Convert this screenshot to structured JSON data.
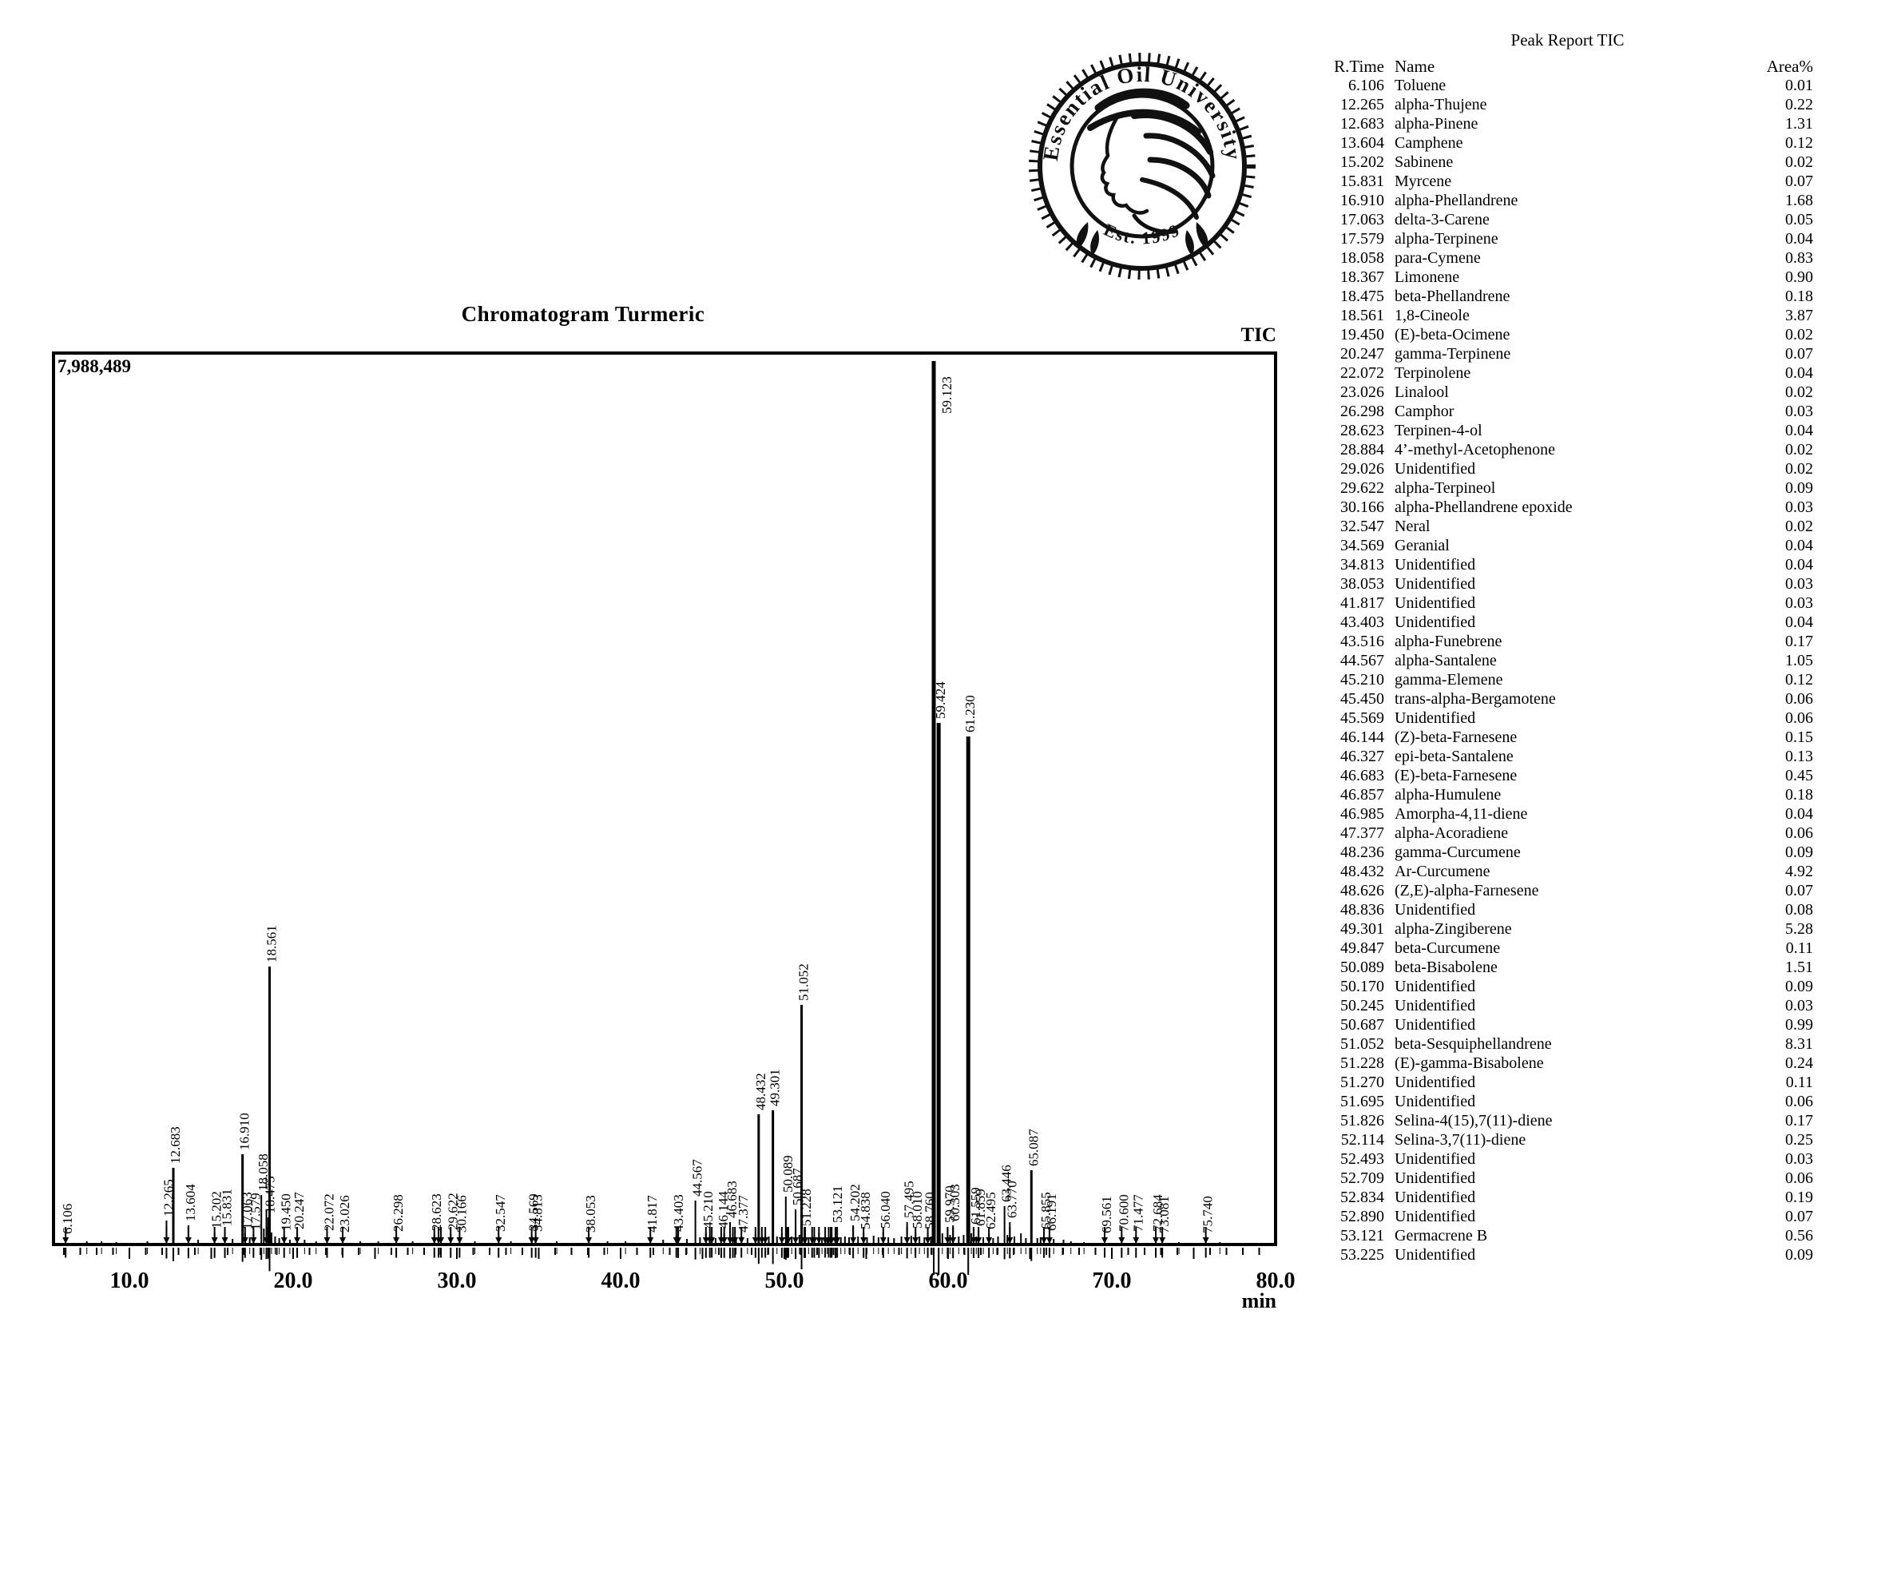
{
  "logo": {
    "ring_text": "Essential Oil University",
    "est_text": "Est. 1999"
  },
  "chart": {
    "title": "Chromatogram Turmeric",
    "signal_label": "TIC",
    "full_scale_label": "7,988,489",
    "x_unit": "min"
  },
  "chart_data": {
    "type": "line",
    "title": "Chromatogram Turmeric",
    "signal": "TIC",
    "xlabel": "min",
    "x_range": [
      5.37,
      80.0
    ],
    "x_tick_values": [
      10,
      20,
      30,
      40,
      50,
      60,
      70,
      80
    ],
    "y_full_scale": 7988489,
    "note": "peaks: t = retention time (min), i = peak height as fraction of full scale, l = printed label, m = integrated peak marker",
    "peaks": [
      {
        "t": 6.106,
        "i": 0.007,
        "l": "6.106",
        "m": 1
      },
      {
        "t": 7.4,
        "i": 0.004
      },
      {
        "t": 8.3,
        "i": 0.004
      },
      {
        "t": 9.2,
        "i": 0.003
      },
      {
        "t": 11.1,
        "i": 0.004
      },
      {
        "t": 12.265,
        "i": 0.027,
        "l": "12.265",
        "m": 1
      },
      {
        "t": 12.683,
        "i": 0.087,
        "l": "12.683",
        "m": 1
      },
      {
        "t": 13.604,
        "i": 0.022,
        "l": "13.604",
        "m": 1
      },
      {
        "t": 14.2,
        "i": 0.005
      },
      {
        "t": 15.202,
        "i": 0.014,
        "l": "15.202",
        "m": 1
      },
      {
        "t": 15.831,
        "i": 0.016,
        "l": "15.831",
        "m": 1
      },
      {
        "t": 16.3,
        "i": 0.006
      },
      {
        "t": 16.91,
        "i": 0.102,
        "l": "16.910",
        "m": 1
      },
      {
        "t": 17.063,
        "i": 0.013,
        "l": "17.063",
        "m": 1
      },
      {
        "t": 17.35,
        "i": 0.008
      },
      {
        "t": 17.579,
        "i": 0.012,
        "l": "17.579",
        "m": 1
      },
      {
        "t": 18.058,
        "i": 0.056,
        "l": "18.058",
        "m": 1
      },
      {
        "t": 18.21,
        "i": 0.018
      },
      {
        "t": 18.367,
        "i": 0.04,
        "m": 1
      },
      {
        "t": 18.475,
        "i": 0.031,
        "l": "18.475",
        "m": 1
      },
      {
        "t": 18.561,
        "i": 0.315,
        "l": "18.561",
        "m": 1
      },
      {
        "t": 18.68,
        "i": 0.014
      },
      {
        "t": 18.9,
        "i": 0.009
      },
      {
        "t": 19.15,
        "i": 0.007
      },
      {
        "t": 19.45,
        "i": 0.011,
        "l": "19.450",
        "m": 1
      },
      {
        "t": 19.8,
        "i": 0.005
      },
      {
        "t": 20.247,
        "i": 0.013,
        "l": "20.247",
        "m": 1
      },
      {
        "t": 20.7,
        "i": 0.005
      },
      {
        "t": 21.4,
        "i": 0.004
      },
      {
        "t": 22.072,
        "i": 0.011,
        "l": "22.072",
        "m": 1
      },
      {
        "t": 23.026,
        "i": 0.009,
        "l": "23.026",
        "m": 1
      },
      {
        "t": 24.1,
        "i": 0.004
      },
      {
        "t": 25.2,
        "i": 0.004
      },
      {
        "t": 26.298,
        "i": 0.01,
        "l": "26.298",
        "m": 1
      },
      {
        "t": 27.3,
        "i": 0.004
      },
      {
        "t": 28.623,
        "i": 0.011,
        "l": "28.623",
        "m": 1
      },
      {
        "t": 28.884,
        "i": 0.009,
        "m": 1
      },
      {
        "t": 29.026,
        "i": 0.008,
        "m": 1
      },
      {
        "t": 29.622,
        "i": 0.012,
        "l": "29.622",
        "m": 1
      },
      {
        "t": 30.166,
        "i": 0.009,
        "l": "30.166",
        "m": 1
      },
      {
        "t": 31.1,
        "i": 0.004
      },
      {
        "t": 32.547,
        "i": 0.01,
        "l": "32.547",
        "m": 1
      },
      {
        "t": 33.3,
        "i": 0.004
      },
      {
        "t": 34.569,
        "i": 0.011,
        "l": "34.569",
        "m": 1
      },
      {
        "t": 34.813,
        "i": 0.01,
        "l": "34.813",
        "m": 1
      },
      {
        "t": 36.1,
        "i": 0.004
      },
      {
        "t": 38.053,
        "i": 0.009,
        "l": "38.053",
        "m": 1
      },
      {
        "t": 39.2,
        "i": 0.004
      },
      {
        "t": 40.3,
        "i": 0.004
      },
      {
        "t": 41.817,
        "i": 0.009,
        "l": "41.817",
        "m": 1
      },
      {
        "t": 42.6,
        "i": 0.005
      },
      {
        "t": 43.403,
        "i": 0.01,
        "l": "43.403",
        "m": 1
      },
      {
        "t": 43.516,
        "i": 0.016,
        "m": 1
      },
      {
        "t": 44.05,
        "i": 0.006
      },
      {
        "t": 44.567,
        "i": 0.05,
        "l": "44.567",
        "m": 1
      },
      {
        "t": 44.85,
        "i": 0.008
      },
      {
        "t": 45.21,
        "i": 0.014,
        "l": "45.210",
        "m": 1
      },
      {
        "t": 45.45,
        "i": 0.01,
        "m": 1
      },
      {
        "t": 45.569,
        "i": 0.009,
        "m": 1
      },
      {
        "t": 45.8,
        "i": 0.007
      },
      {
        "t": 46.144,
        "i": 0.014,
        "l": "46.144",
        "m": 1
      },
      {
        "t": 46.327,
        "i": 0.013,
        "m": 1
      },
      {
        "t": 46.683,
        "i": 0.025,
        "l": "46.683",
        "m": 1
      },
      {
        "t": 46.857,
        "i": 0.014,
        "m": 1
      },
      {
        "t": 46.985,
        "i": 0.009,
        "m": 1
      },
      {
        "t": 47.05,
        "i": 0.007
      },
      {
        "t": 47.377,
        "i": 0.009,
        "l": "47.377",
        "m": 1
      },
      {
        "t": 47.75,
        "i": 0.007
      },
      {
        "t": 48.236,
        "i": 0.012,
        "m": 1
      },
      {
        "t": 48.432,
        "i": 0.147,
        "l": "48.432",
        "m": 1
      },
      {
        "t": 48.626,
        "i": 0.01,
        "m": 1
      },
      {
        "t": 48.836,
        "i": 0.01,
        "m": 1
      },
      {
        "t": 49.05,
        "i": 0.009
      },
      {
        "t": 49.301,
        "i": 0.152,
        "l": "49.301",
        "m": 1
      },
      {
        "t": 49.55,
        "i": 0.009
      },
      {
        "t": 49.847,
        "i": 0.013,
        "m": 1
      },
      {
        "t": 50.089,
        "i": 0.054,
        "l": "50.089",
        "m": 1
      },
      {
        "t": 50.17,
        "i": 0.013,
        "m": 1
      },
      {
        "t": 50.245,
        "i": 0.01,
        "m": 1
      },
      {
        "t": 50.45,
        "i": 0.009
      },
      {
        "t": 50.687,
        "i": 0.04,
        "l": "50.687",
        "m": 1
      },
      {
        "t": 50.92,
        "i": 0.011
      },
      {
        "t": 51.052,
        "i": 0.271,
        "l": "51.052",
        "m": 1
      },
      {
        "t": 51.228,
        "i": 0.016,
        "l": "51.228",
        "m": 1
      },
      {
        "t": 51.27,
        "i": 0.012,
        "m": 1
      },
      {
        "t": 51.48,
        "i": 0.008
      },
      {
        "t": 51.695,
        "i": 0.008,
        "m": 1
      },
      {
        "t": 51.826,
        "i": 0.011,
        "m": 1
      },
      {
        "t": 52.114,
        "i": 0.014,
        "m": 1
      },
      {
        "t": 52.3,
        "i": 0.007
      },
      {
        "t": 52.493,
        "i": 0.008,
        "m": 1
      },
      {
        "t": 52.62,
        "i": 0.007
      },
      {
        "t": 52.709,
        "i": 0.008,
        "m": 1
      },
      {
        "t": 52.834,
        "i": 0.011,
        "m": 1
      },
      {
        "t": 52.89,
        "i": 0.008,
        "m": 1
      },
      {
        "t": 53.121,
        "i": 0.02,
        "l": "53.121",
        "m": 1
      },
      {
        "t": 53.225,
        "i": 0.009,
        "m": 1
      },
      {
        "t": 53.45,
        "i": 0.008
      },
      {
        "t": 53.7,
        "i": 0.009
      },
      {
        "t": 53.95,
        "i": 0.008
      },
      {
        "t": 54.202,
        "i": 0.022,
        "l": "54.202",
        "m": 1
      },
      {
        "t": 54.5,
        "i": 0.009
      },
      {
        "t": 54.838,
        "i": 0.013,
        "l": "54.838",
        "m": 1
      },
      {
        "t": 55.05,
        "i": 0.008
      },
      {
        "t": 55.45,
        "i": 0.01
      },
      {
        "t": 55.75,
        "i": 0.008
      },
      {
        "t": 56.04,
        "i": 0.014,
        "l": "56.040",
        "m": 1
      },
      {
        "t": 56.35,
        "i": 0.008
      },
      {
        "t": 56.7,
        "i": 0.007
      },
      {
        "t": 57.15,
        "i": 0.009
      },
      {
        "t": 57.495,
        "i": 0.025,
        "l": "57.495",
        "m": 1
      },
      {
        "t": 57.75,
        "i": 0.01
      },
      {
        "t": 58.01,
        "i": 0.014,
        "l": "58.010",
        "m": 1
      },
      {
        "t": 58.25,
        "i": 0.009
      },
      {
        "t": 58.55,
        "i": 0.008
      },
      {
        "t": 58.76,
        "i": 0.013,
        "l": "58.760",
        "m": 1
      },
      {
        "t": 58.95,
        "i": 0.009
      },
      {
        "t": 59.123,
        "i": 1.0,
        "l": "59.123",
        "m": 1
      },
      {
        "t": 59.424,
        "i": 0.59,
        "l": "59.424",
        "m": 1
      },
      {
        "t": 59.65,
        "i": 0.013
      },
      {
        "t": 59.97,
        "i": 0.02,
        "l": "59.970",
        "m": 1
      },
      {
        "t": 60.12,
        "i": 0.011
      },
      {
        "t": 60.303,
        "i": 0.022,
        "l": "60.303",
        "m": 1
      },
      {
        "t": 60.65,
        "i": 0.009
      },
      {
        "t": 60.95,
        "i": 0.011
      },
      {
        "t": 61.23,
        "i": 0.575,
        "l": "61.230",
        "m": 1
      },
      {
        "t": 61.42,
        "i": 0.013
      },
      {
        "t": 61.559,
        "i": 0.018,
        "l": "61.559",
        "m": 1
      },
      {
        "t": 61.72,
        "i": 0.009
      },
      {
        "t": 61.859,
        "i": 0.016,
        "l": "61.859",
        "m": 1
      },
      {
        "t": 62.15,
        "i": 0.008
      },
      {
        "t": 62.495,
        "i": 0.013,
        "l": "62.495",
        "m": 1
      },
      {
        "t": 62.75,
        "i": 0.007
      },
      {
        "t": 63.05,
        "i": 0.009
      },
      {
        "t": 63.446,
        "i": 0.043,
        "l": "63.446",
        "m": 1
      },
      {
        "t": 63.62,
        "i": 0.011
      },
      {
        "t": 63.77,
        "i": 0.025,
        "l": "63.770",
        "m": 1
      },
      {
        "t": 64.05,
        "i": 0.009
      },
      {
        "t": 64.45,
        "i": 0.013
      },
      {
        "t": 64.75,
        "i": 0.007
      },
      {
        "t": 65.087,
        "i": 0.084,
        "l": "65.087",
        "m": 1
      },
      {
        "t": 65.45,
        "i": 0.007
      },
      {
        "t": 65.65,
        "i": 0.008
      },
      {
        "t": 65.855,
        "i": 0.013,
        "l": "65.855",
        "m": 1
      },
      {
        "t": 66.191,
        "i": 0.011,
        "l": "66.191",
        "m": 1
      },
      {
        "t": 66.45,
        "i": 0.006
      },
      {
        "t": 67.05,
        "i": 0.005
      },
      {
        "t": 67.5,
        "i": 0.004
      },
      {
        "t": 68.3,
        "i": 0.003
      },
      {
        "t": 69.561,
        "i": 0.008,
        "l": "69.561",
        "m": 1
      },
      {
        "t": 70.6,
        "i": 0.01,
        "l": "70.600",
        "m": 1
      },
      {
        "t": 71.477,
        "i": 0.01,
        "l": "71.477",
        "m": 1
      },
      {
        "t": 72.684,
        "i": 0.01,
        "l": "72.684",
        "m": 1
      },
      {
        "t": 73.081,
        "i": 0.008,
        "l": "73.081",
        "m": 1
      },
      {
        "t": 74.1,
        "i": 0.003
      },
      {
        "t": 75.74,
        "i": 0.008,
        "l": "75.740",
        "m": 1
      },
      {
        "t": 76.6,
        "i": 0.003
      }
    ]
  },
  "table": {
    "title": "Peak Report TIC",
    "columns": [
      "R.Time",
      "Name",
      "Area%"
    ],
    "rows": [
      [
        "6.106",
        "Toluene",
        "0.01"
      ],
      [
        "12.265",
        "alpha-Thujene",
        "0.22"
      ],
      [
        "12.683",
        "alpha-Pinene",
        "1.31"
      ],
      [
        "13.604",
        "Camphene",
        "0.12"
      ],
      [
        "15.202",
        "Sabinene",
        "0.02"
      ],
      [
        "15.831",
        "Myrcene",
        "0.07"
      ],
      [
        "16.910",
        "alpha-Phellandrene",
        "1.68"
      ],
      [
        "17.063",
        "delta-3-Carene",
        "0.05"
      ],
      [
        "17.579",
        "alpha-Terpinene",
        "0.04"
      ],
      [
        "18.058",
        "para-Cymene",
        "0.83"
      ],
      [
        "18.367",
        "Limonene",
        "0.90"
      ],
      [
        "18.475",
        "beta-Phellandrene",
        "0.18"
      ],
      [
        "18.561",
        "1,8-Cineole",
        "3.87"
      ],
      [
        "19.450",
        "(E)-beta-Ocimene",
        "0.02"
      ],
      [
        "20.247",
        "gamma-Terpinene",
        "0.07"
      ],
      [
        "22.072",
        "Terpinolene",
        "0.04"
      ],
      [
        "23.026",
        "Linalool",
        "0.02"
      ],
      [
        "26.298",
        "Camphor",
        "0.03"
      ],
      [
        "28.623",
        "Terpinen-4-ol",
        "0.04"
      ],
      [
        "28.884",
        "4’-methyl-Acetophenone",
        "0.02"
      ],
      [
        "29.026",
        "Unidentified",
        "0.02"
      ],
      [
        "29.622",
        "alpha-Terpineol",
        "0.09"
      ],
      [
        "30.166",
        "alpha-Phellandrene epoxide",
        "0.03"
      ],
      [
        "32.547",
        "Neral",
        "0.02"
      ],
      [
        "34.569",
        "Geranial",
        "0.04"
      ],
      [
        "34.813",
        "Unidentified",
        "0.04"
      ],
      [
        "38.053",
        "Unidentified",
        "0.03"
      ],
      [
        "41.817",
        "Unidentified",
        "0.03"
      ],
      [
        "43.403",
        "Unidentified",
        "0.04"
      ],
      [
        "43.516",
        "alpha-Funebrene",
        "0.17"
      ],
      [
        "44.567",
        "alpha-Santalene",
        "1.05"
      ],
      [
        "45.210",
        "gamma-Elemene",
        "0.12"
      ],
      [
        "45.450",
        "trans-alpha-Bergamotene",
        "0.06"
      ],
      [
        "45.569",
        "Unidentified",
        "0.06"
      ],
      [
        "46.144",
        "(Z)-beta-Farnesene",
        "0.15"
      ],
      [
        "46.327",
        "epi-beta-Santalene",
        "0.13"
      ],
      [
        "46.683",
        "(E)-beta-Farnesene",
        "0.45"
      ],
      [
        "46.857",
        "alpha-Humulene",
        "0.18"
      ],
      [
        "46.985",
        "Amorpha-4,11-diene",
        "0.04"
      ],
      [
        "47.377",
        "alpha-Acoradiene",
        "0.06"
      ],
      [
        "48.236",
        "gamma-Curcumene",
        "0.09"
      ],
      [
        "48.432",
        "Ar-Curcumene",
        "4.92"
      ],
      [
        "48.626",
        "(Z,E)-alpha-Farnesene",
        "0.07"
      ],
      [
        "48.836",
        "Unidentified",
        "0.08"
      ],
      [
        "49.301",
        "alpha-Zingiberene",
        "5.28"
      ],
      [
        "49.847",
        "beta-Curcumene",
        "0.11"
      ],
      [
        "50.089",
        "beta-Bisabolene",
        "1.51"
      ],
      [
        "50.170",
        "Unidentified",
        "0.09"
      ],
      [
        "50.245",
        "Unidentified",
        "0.03"
      ],
      [
        "50.687",
        "Unidentified",
        "0.99"
      ],
      [
        "51.052",
        "beta-Sesquiphellandrene",
        "8.31"
      ],
      [
        "51.228",
        "(E)-gamma-Bisabolene",
        "0.24"
      ],
      [
        "51.270",
        "Unidentified",
        "0.11"
      ],
      [
        "51.695",
        "Unidentified",
        "0.06"
      ],
      [
        "51.826",
        "Selina-4(15),7(11)-diene",
        "0.17"
      ],
      [
        "52.114",
        "Selina-3,7(11)-diene",
        "0.25"
      ],
      [
        "52.493",
        "Unidentified",
        "0.03"
      ],
      [
        "52.709",
        "Unidentified",
        "0.06"
      ],
      [
        "52.834",
        "Unidentified",
        "0.19"
      ],
      [
        "52.890",
        "Unidentified",
        "0.07"
      ],
      [
        "53.121",
        "Germacrene B",
        "0.56"
      ],
      [
        "53.225",
        "Unidentified",
        "0.09"
      ]
    ]
  }
}
